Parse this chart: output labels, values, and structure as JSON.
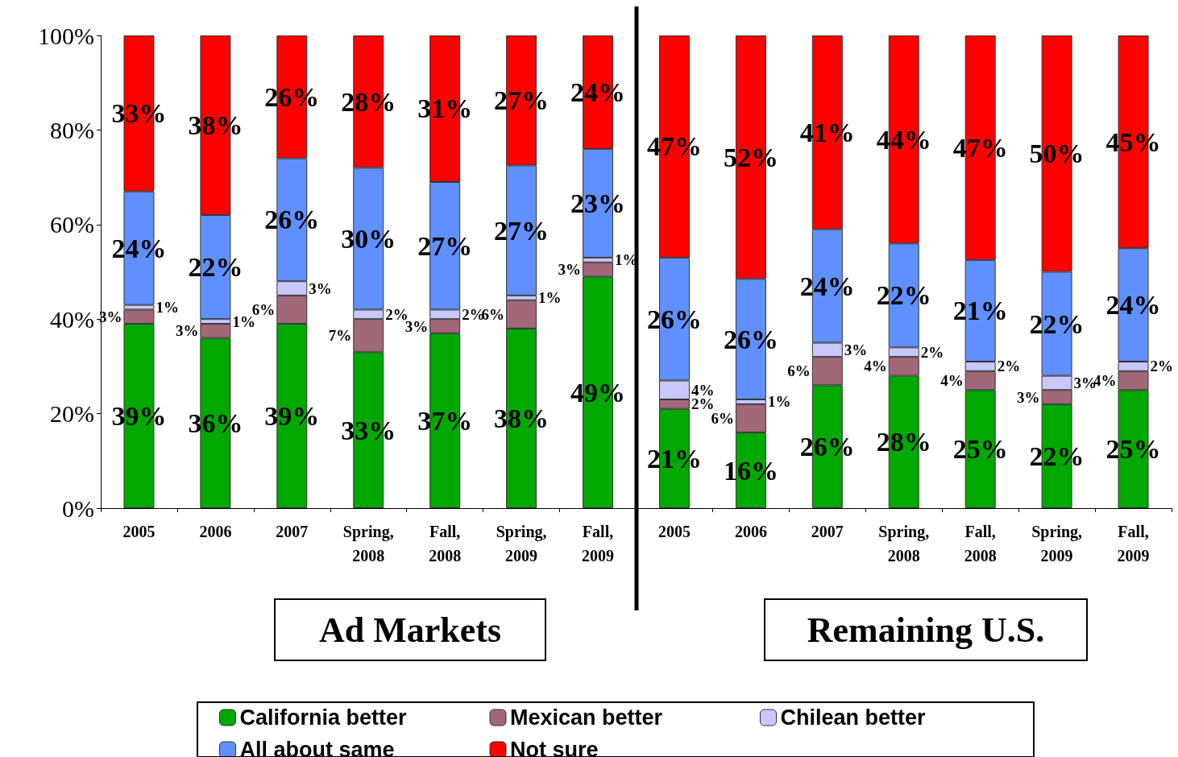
{
  "chart_data": {
    "type": "bar",
    "stacked": true,
    "legend": "bottom",
    "categories": [
      "2005",
      "2006",
      "2007",
      "Spring, 2008",
      "Fall, 2008",
      "Spring, 2009",
      "Fall, 2009",
      "2005",
      "2006",
      "2007",
      "Spring, 2008",
      "Fall, 2008",
      "Spring, 2009",
      "Fall, 2009"
    ],
    "ylim": [
      0,
      100
    ],
    "yticks": [
      {
        "value": 0,
        "label": "0%"
      },
      {
        "value": 20,
        "label": "20%"
      },
      {
        "value": 40,
        "label": "40%"
      },
      {
        "value": 60,
        "label": "60%"
      },
      {
        "value": 80,
        "label": "80%"
      },
      {
        "value": 100,
        "label": "100%"
      }
    ],
    "series": [
      {
        "name": "California better",
        "color": "#00a800",
        "values": [
          39,
          36,
          39,
          33,
          37,
          38,
          49,
          21,
          16,
          26,
          28,
          25,
          22,
          25
        ],
        "value_labels": [
          "39%",
          "36%",
          "39%",
          "33%",
          "37%",
          "38%",
          "49%",
          "21%",
          "16%",
          "26%",
          "28%",
          "25%",
          "22%",
          "25%"
        ]
      },
      {
        "name": "Mexican better",
        "color": "#a06878",
        "values": [
          3,
          3,
          6,
          7,
          3,
          6,
          3,
          2,
          6,
          6,
          4,
          4,
          3,
          4
        ],
        "value_labels": [
          "3%",
          "3%",
          "6%",
          "7%",
          "3%",
          "6%",
          "3%",
          "2%",
          "6%",
          "6%",
          "4%",
          "4%",
          "3%",
          "4%"
        ]
      },
      {
        "name": "Chilean better",
        "color": "#c8c8ff",
        "values": [
          1,
          1,
          3,
          2,
          2,
          1,
          1,
          4,
          1,
          3,
          2,
          2,
          3,
          2
        ],
        "value_labels": [
          "1%",
          "1%",
          "3%",
          "2%",
          "2%",
          "1%",
          "1%",
          "4%",
          "1%",
          "3%",
          "2%",
          "2%",
          "3%",
          "2%"
        ]
      },
      {
        "name": "All about same",
        "color": "#6090ff",
        "values": [
          24,
          22,
          26,
          30,
          27,
          27.5,
          23,
          26,
          25.5,
          24,
          22,
          21.5,
          22,
          24
        ],
        "value_labels": [
          "24%",
          "22%",
          "26%",
          "30%",
          "27%",
          "27%",
          "23%",
          "26%",
          "26%",
          "24%",
          "22%",
          "21%",
          "22%",
          "24%"
        ]
      },
      {
        "name": "Not sure",
        "color": "#ff0000",
        "values": [
          33,
          38,
          26,
          28,
          31,
          27.5,
          24,
          47,
          51.5,
          41,
          44,
          47.5,
          50,
          45
        ],
        "value_labels": [
          "33%",
          "38%",
          "26%",
          "28%",
          "31%",
          "27%",
          "24%",
          "47%",
          "52%",
          "41%",
          "44%",
          "47%",
          "50%",
          "45%"
        ]
      }
    ],
    "annotations": [
      "Ad Markets",
      "Remaining U.S."
    ]
  }
}
